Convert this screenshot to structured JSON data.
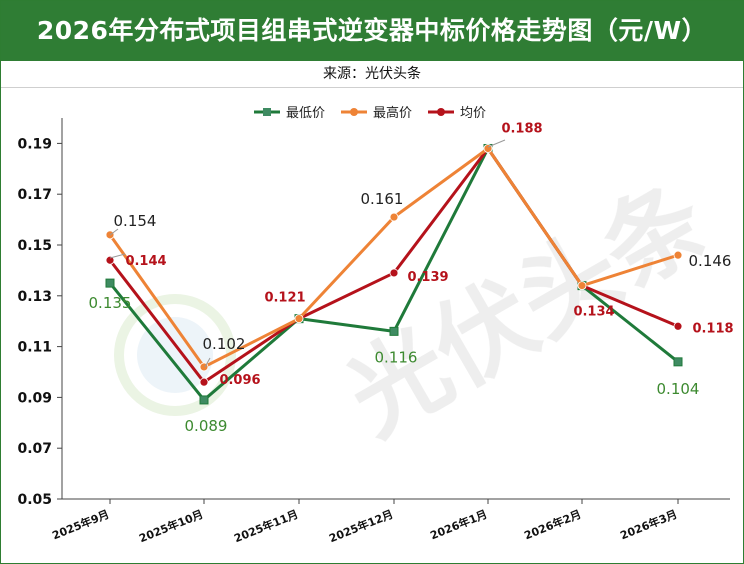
{
  "title": "2026年分布式项目组串式逆变器中标价格走势图（元/W）",
  "source": "来源：光伏头条",
  "watermark": "光伏头条",
  "colors": {
    "title_bg": "#2f7d34",
    "min_series": "#1f7a3a",
    "max_series": "#ee8336",
    "avg_series": "#b5121b",
    "min_label": "#3d8a30",
    "max_label": "#222222",
    "avg_label": "#b5121b"
  },
  "chart_data": {
    "type": "line",
    "categories": [
      "2025年9月",
      "2025年10月",
      "2025年11月",
      "2025年12月",
      "2026年1月",
      "2026年2月",
      "2026年3月"
    ],
    "series": [
      {
        "name": "最低价",
        "values": [
          0.135,
          0.089,
          0.121,
          0.116,
          0.188,
          0.134,
          0.104
        ],
        "labels": [
          "0.135",
          "0.089",
          "",
          "0.116",
          "",
          "",
          "0.104"
        ]
      },
      {
        "name": "最高价",
        "values": [
          0.154,
          0.102,
          0.121,
          0.161,
          0.188,
          0.134,
          0.146
        ],
        "labels": [
          "0.154",
          "0.102",
          "",
          "0.161",
          "",
          "",
          "0.146"
        ]
      },
      {
        "name": "均价",
        "values": [
          0.144,
          0.096,
          0.121,
          0.139,
          0.188,
          0.134,
          0.118
        ],
        "labels": [
          "0.144",
          "0.096",
          "0.121",
          "0.139",
          "0.188",
          "0.134",
          "0.118"
        ]
      }
    ],
    "ylim": [
      0.05,
      0.2
    ],
    "yticks": [
      "0.05",
      "0.07",
      "0.09",
      "0.11",
      "0.13",
      "0.15",
      "0.17",
      "0.19"
    ],
    "legend_position": "top-center",
    "grid": false
  }
}
